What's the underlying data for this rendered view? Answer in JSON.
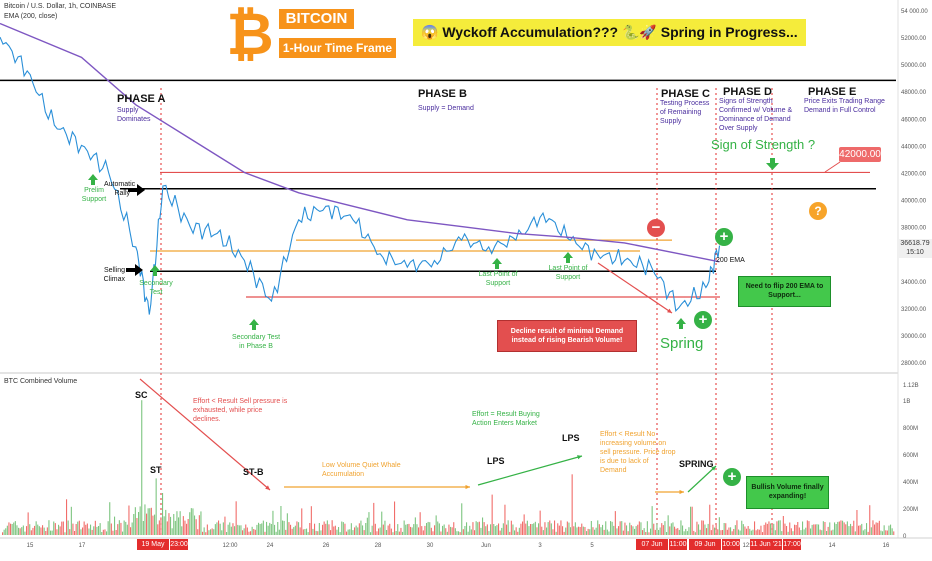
{
  "header": {
    "symbol_title": "Bitcoin / U.S. Dollar, 1h, COINBASE",
    "ema_label": "EMA (200, close)",
    "volume_label": "BTC Combined Volume"
  },
  "logo": {
    "title": "BITCOIN",
    "subtitle": "1-Hour Time Frame",
    "icon": "bitcoin-logo-icon",
    "color": "#f7931a"
  },
  "banner": {
    "text": "😱 Wyckoff Accumulation??? 🐍🚀 Spring in Progress...",
    "color": "#f5ec3b"
  },
  "phases": [
    {
      "title": "PHASE A",
      "desc": "Supply Dominates"
    },
    {
      "title": "PHASE B",
      "desc": "Supply = Demand"
    },
    {
      "title": "PHASE C",
      "desc": "Testing Process of Remaining Supply"
    },
    {
      "title": "PHASE D",
      "desc": "Signs of Strength Confirmed w/ Volume & Dominance of Demand Over Supply"
    },
    {
      "title": "PHASE E",
      "desc": "Price Exits Trading Range Demand in Full Control"
    }
  ],
  "price_annotations": {
    "prelim_support": "Prelim Support",
    "automatic_rally": "Automatic Rally",
    "selling_climax": "Selling Climax",
    "secondary_test": "Secondary Test",
    "secondary_test_phase_b": "Secondary Test in Phase B",
    "lps1": "Last Point of Support",
    "lps2": "Last Point of Support",
    "sign_of_strength": "Sign of Strength ?",
    "target_label": "42000.00",
    "ema_200_label": "200 EMA",
    "spring": "Spring",
    "callout_red": "Decline result of minimal Demand instead of rising Bearish Volume!",
    "callout_ema": "Need to flip 200 EMA to Support...",
    "question_mark": "?"
  },
  "volume_annotations": {
    "sc": "SC",
    "st": "ST",
    "st_b": "ST-B",
    "lps_a": "LPS",
    "lps_b": "LPS",
    "spring": "SPRING",
    "effort1": "Effort < Result Sell pressure is exhausted, while price declines.",
    "low_volume": "Low Volume Quiet Whale Accumulation",
    "effort2": "Effort = Result Buying Action Enters Market",
    "effort3": "Effort < Result No increasing volume on sell pressure. Price drop is due to lack of Demand",
    "bullish_volume": "Bullish Volume finally expanding!"
  },
  "chart_data": [
    {
      "type": "line",
      "title": "Bitcoin / U.S. Dollar, 1h, COINBASE",
      "series": [
        {
          "name": "Price",
          "color": "#2a8fd8",
          "x": [
            "May 14",
            "May 15",
            "May 16",
            "May 17",
            "May 18",
            "May 19",
            "May 19 12:00",
            "May 20",
            "May 21",
            "May 22",
            "May 23",
            "May 24",
            "May 25",
            "May 26",
            "May 27",
            "May 28",
            "May 29",
            "May 30",
            "May 31",
            "Jun 1",
            "Jun 2",
            "Jun 3",
            "Jun 4",
            "Jun 5",
            "Jun 6",
            "Jun 7",
            "Jun 8",
            "Jun 9",
            "Jun 9 12:00"
          ],
          "values": [
            52000,
            49500,
            45500,
            44000,
            42000,
            36500,
            31500,
            41000,
            38000,
            37500,
            35500,
            32500,
            38500,
            39500,
            38500,
            36000,
            35000,
            35500,
            37000,
            36500,
            37000,
            39000,
            37000,
            36000,
            35500,
            35000,
            32000,
            33500,
            36600
          ]
        },
        {
          "name": "EMA (200, close)",
          "color": "#7e57c2",
          "x": [
            "May 14",
            "May 17",
            "May 19",
            "May 21",
            "May 23",
            "May 25",
            "May 27",
            "May 29",
            "May 31",
            "Jun 2",
            "Jun 4",
            "Jun 6",
            "Jun 8",
            "Jun 9 12:00"
          ],
          "values": [
            53000,
            50500,
            47000,
            44500,
            42000,
            40500,
            39500,
            38500,
            38000,
            37500,
            37200,
            36800,
            36000,
            35400
          ]
        }
      ],
      "y_axis_ticks": [
        "54 000.00",
        "52000.00",
        "50000.00",
        "48000.00",
        "46000.00",
        "44000.00",
        "42000.00",
        "40000.00",
        "38000.00",
        "36000.00",
        "34000.00",
        "32000.00",
        "30000.00",
        "28000.00"
      ],
      "horizontal_levels": [
        {
          "value": 48800,
          "color": "#000000"
        },
        {
          "value": 42000,
          "color": "#e34f4f"
        },
        {
          "value": 40800,
          "color": "#000000"
        },
        {
          "value": 37000,
          "color": "#f0a330"
        },
        {
          "value": 36200,
          "color": "#f0a330"
        },
        {
          "value": 34700,
          "color": "#000000"
        },
        {
          "value": 32800,
          "color": "#e34f4f"
        }
      ],
      "current_price": "36618.79",
      "current_time": "15:10",
      "grid": false
    },
    {
      "type": "bar",
      "title": "BTC Combined Volume",
      "y_axis_ticks": [
        "1.12B",
        "1B",
        "800M",
        "600M",
        "400M",
        "200M",
        "0"
      ],
      "bar_colors": [
        "#ef5350",
        "#66bb6a"
      ],
      "peak_values": [
        {
          "label": "SC",
          "value": 1000
        },
        {
          "label": "ST",
          "value": 420
        },
        {
          "label": "ST-B",
          "value": 250
        },
        {
          "label": "LPS",
          "value": 300
        },
        {
          "label": "LPS",
          "value": 450
        },
        {
          "label": "SPRING",
          "value": 210
        }
      ],
      "unit": "M"
    }
  ],
  "x_axis": {
    "ticks": [
      "15",
      "17",
      "12:00",
      "24",
      "26",
      "28",
      "30",
      "Jun",
      "3",
      "5",
      "7",
      "12:00",
      "14",
      "16"
    ],
    "highlighted_dates": [
      "19 May '21",
      "23:00",
      "07 Jun '21",
      "11:00",
      "09 Jun '21",
      "10:00",
      "11 Jun '21",
      "17:00"
    ]
  },
  "colors": {
    "price_line": "#2a8fd8",
    "ema_line": "#7e57c2",
    "phase_divider": "#e32d2d",
    "annotation_red": "#e34f4f",
    "annotation_green": "#35b246",
    "annotation_orange": "#f0a330",
    "annotation_purple": "#4a2d9e"
  }
}
